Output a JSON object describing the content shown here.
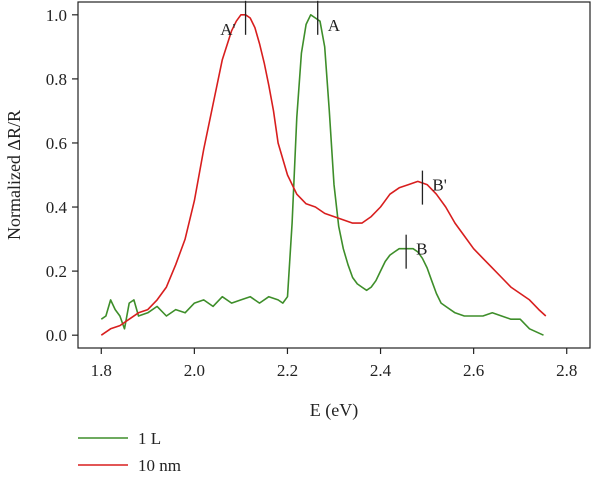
{
  "chart_data": {
    "type": "line",
    "xlabel": "E (eV)",
    "ylabel": "Normalized ΔR/R",
    "xlim": [
      1.75,
      2.85
    ],
    "ylim": [
      -0.04,
      1.04
    ],
    "xticks": [
      "1.8",
      "2.0",
      "2.2",
      "2.4",
      "2.6",
      "2.8"
    ],
    "yticks": [
      "0.0",
      "0.2",
      "0.4",
      "0.6",
      "0.8",
      "1.0"
    ],
    "grid": false,
    "legend_position": "bottom-left",
    "series": [
      {
        "name": "1 L",
        "color": "#3e8e2a",
        "x": [
          1.8,
          1.81,
          1.82,
          1.83,
          1.84,
          1.85,
          1.86,
          1.87,
          1.88,
          1.9,
          1.92,
          1.94,
          1.96,
          1.98,
          2.0,
          2.02,
          2.04,
          2.06,
          2.08,
          2.1,
          2.12,
          2.14,
          2.16,
          2.18,
          2.19,
          2.2,
          2.21,
          2.22,
          2.23,
          2.24,
          2.25,
          2.26,
          2.27,
          2.28,
          2.29,
          2.3,
          2.31,
          2.32,
          2.33,
          2.34,
          2.35,
          2.36,
          2.37,
          2.38,
          2.39,
          2.4,
          2.41,
          2.42,
          2.43,
          2.44,
          2.45,
          2.46,
          2.47,
          2.48,
          2.49,
          2.5,
          2.51,
          2.52,
          2.53,
          2.54,
          2.56,
          2.58,
          2.6,
          2.62,
          2.64,
          2.66,
          2.68,
          2.7,
          2.72,
          2.75
        ],
        "y": [
          0.05,
          0.06,
          0.11,
          0.08,
          0.06,
          0.02,
          0.1,
          0.11,
          0.06,
          0.07,
          0.09,
          0.06,
          0.08,
          0.07,
          0.1,
          0.11,
          0.09,
          0.12,
          0.1,
          0.11,
          0.12,
          0.1,
          0.12,
          0.11,
          0.1,
          0.12,
          0.35,
          0.68,
          0.88,
          0.97,
          1.0,
          0.99,
          0.98,
          0.9,
          0.7,
          0.47,
          0.34,
          0.27,
          0.22,
          0.18,
          0.16,
          0.15,
          0.14,
          0.15,
          0.17,
          0.2,
          0.23,
          0.25,
          0.26,
          0.27,
          0.27,
          0.27,
          0.27,
          0.26,
          0.24,
          0.21,
          0.17,
          0.13,
          0.1,
          0.09,
          0.07,
          0.06,
          0.06,
          0.06,
          0.07,
          0.06,
          0.05,
          0.05,
          0.02,
          0.0
        ]
      },
      {
        "name": "10 nm",
        "color": "#d81e1e",
        "x": [
          1.8,
          1.82,
          1.84,
          1.86,
          1.88,
          1.9,
          1.92,
          1.94,
          1.96,
          1.98,
          2.0,
          2.02,
          2.04,
          2.06,
          2.08,
          2.09,
          2.1,
          2.11,
          2.12,
          2.13,
          2.14,
          2.15,
          2.16,
          2.17,
          2.18,
          2.2,
          2.22,
          2.24,
          2.26,
          2.28,
          2.3,
          2.32,
          2.34,
          2.36,
          2.38,
          2.4,
          2.42,
          2.44,
          2.46,
          2.48,
          2.5,
          2.52,
          2.54,
          2.56,
          2.58,
          2.6,
          2.62,
          2.64,
          2.66,
          2.68,
          2.7,
          2.72,
          2.74,
          2.755
        ],
        "y": [
          0.0,
          0.02,
          0.03,
          0.05,
          0.07,
          0.08,
          0.11,
          0.15,
          0.22,
          0.3,
          0.42,
          0.58,
          0.72,
          0.86,
          0.95,
          0.98,
          1.0,
          1.0,
          0.99,
          0.96,
          0.91,
          0.85,
          0.78,
          0.7,
          0.6,
          0.5,
          0.44,
          0.41,
          0.4,
          0.38,
          0.37,
          0.36,
          0.35,
          0.35,
          0.37,
          0.4,
          0.44,
          0.46,
          0.47,
          0.48,
          0.47,
          0.44,
          0.4,
          0.35,
          0.31,
          0.27,
          0.24,
          0.21,
          0.18,
          0.15,
          0.13,
          0.11,
          0.08,
          0.06
        ]
      }
    ],
    "annotations": [
      {
        "text": "A'",
        "x": 2.11,
        "y": 1.0
      },
      {
        "text": "A",
        "x": 2.265,
        "y": 1.0
      },
      {
        "text": "B'",
        "x": 2.49,
        "y": 0.47
      },
      {
        "text": "B",
        "x": 2.455,
        "y": 0.27
      }
    ]
  }
}
